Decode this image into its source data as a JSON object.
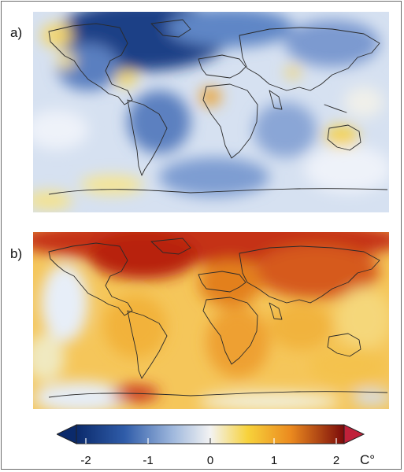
{
  "panels": [
    {
      "label": "a)",
      "anomaly": "cool",
      "background": "#cfdcef"
    },
    {
      "label": "b)",
      "anomaly": "warm",
      "background": "#f6c04a"
    }
  ],
  "colorbar": {
    "ticks": [
      "-2",
      "-1",
      "0",
      "1",
      "2"
    ],
    "unit": "C°",
    "range": [
      -2,
      2
    ],
    "colors": [
      "#0b2a6b",
      "#3f67b0",
      "#9fb8dd",
      "#f3f3f3",
      "#f7d23b",
      "#eb8a1f",
      "#c42a13",
      "#7a0a0a"
    ]
  }
}
